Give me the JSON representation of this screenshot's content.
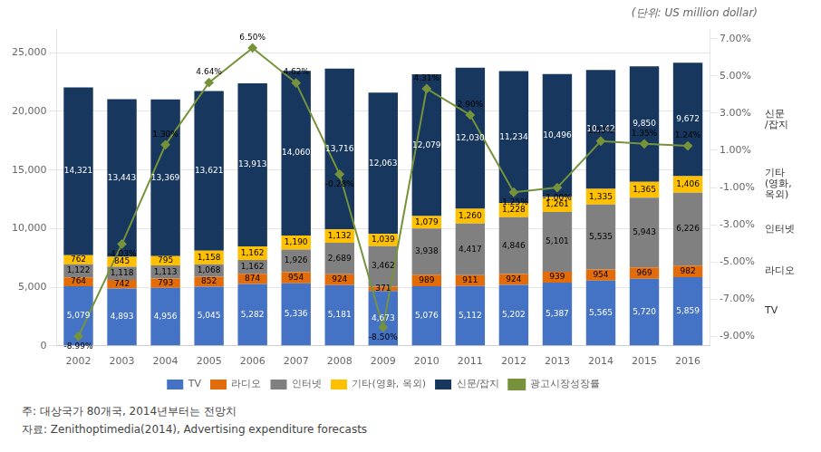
{
  "chart_data": {
    "type": "bar",
    "subtitle": "(단위: US million dollar)",
    "categories": [
      "2002",
      "2003",
      "2004",
      "2005",
      "2006",
      "2007",
      "2008",
      "2009",
      "2010",
      "2011",
      "2012",
      "2013",
      "2014",
      "2015",
      "2016"
    ],
    "stacked": true,
    "data_labels": true,
    "grid": true,
    "legend": "bottom",
    "series": [
      {
        "name": "TV",
        "color": "#4472C4",
        "values": [
          5079,
          4893,
          4956,
          5045,
          5282,
          5336,
          5181,
          4673,
          5076,
          5112,
          5202,
          5387,
          5565,
          5720,
          5859
        ],
        "value_labels": [
          "5,079",
          "4,893",
          "4,956",
          "5,045",
          "5,282",
          "5,336",
          "5,181",
          "4,673",
          "5,076",
          "5,112",
          "5,202",
          "5,387",
          "5,565",
          "5,720",
          "5,859"
        ]
      },
      {
        "name": "라디오",
        "color": "#E36C0A",
        "values": [
          764,
          742,
          793,
          852,
          874,
          954,
          924,
          371,
          989,
          911,
          924,
          939,
          954,
          969,
          982
        ]
      },
      {
        "name": "인터넷",
        "color": "#808080",
        "values": [
          1122,
          1118,
          1113,
          1068,
          1162,
          1926,
          2689,
          3462,
          3938,
          4417,
          4846,
          5101,
          5535,
          5943,
          6226
        ],
        "value_labels": [
          "1,122",
          "1,118",
          "1,113",
          "1,068",
          "1,162",
          "1,926",
          "2,689",
          "3,462",
          "3,938",
          "4,417",
          "4,846",
          "5,101",
          "5,535",
          "5,943",
          "6,226"
        ]
      },
      {
        "name": "기타(영화, 옥외)",
        "color": "#FFC000",
        "values": [
          762,
          845,
          795,
          1158,
          1162,
          1190,
          1132,
          1039,
          1079,
          1260,
          1228,
          1261,
          1335,
          1365,
          1406
        ],
        "value_labels": [
          "762",
          "845",
          "795",
          "1,158",
          "1,162",
          "1,190",
          "1,132",
          "1,039",
          "1,079",
          "1,260",
          "1,228",
          "1,261",
          "1,335",
          "1,365",
          "1,406"
        ]
      },
      {
        "name": "신문/잡지",
        "color": "#17375E",
        "values": [
          14321,
          13443,
          13369,
          13621,
          13913,
          14060,
          13716,
          12063,
          12079,
          12030,
          11234,
          10496,
          10142,
          9850,
          9672
        ],
        "value_labels": [
          "14,321",
          "13,443",
          "13,369",
          "13,621",
          "13,913",
          "14,060",
          "13,716",
          "12,063",
          "12,079",
          "12,030",
          "11,234",
          "10,496",
          "10,142",
          "9,850",
          "9,672"
        ]
      },
      {
        "name": "광고시장성장률",
        "type": "line",
        "axis": "y2",
        "color": "#76933C",
        "marker": "diamond",
        "values": [
          -8.99,
          -4.03,
          1.3,
          4.64,
          6.5,
          4.62,
          -0.28,
          -8.5,
          4.31,
          2.9,
          -1.25,
          -1.0,
          1.5,
          1.35,
          1.24
        ],
        "value_labels": [
          "-8.99%",
          "-4.03%",
          "1.30%",
          "4.64%",
          "6.50%",
          "4.62%",
          "-0.28%",
          "-8.50%",
          "4.31%",
          "2.90%",
          "-1.25%",
          "-1.00%",
          "1.50%",
          "1.35%",
          "1.24%"
        ]
      }
    ],
    "ylim": [
      0,
      27000
    ],
    "yticks": [
      0,
      {
        "value": 5000,
        "label": "5,000"
      },
      {
        "value": 10000,
        "label": "10,000"
      },
      {
        "value": 15000,
        "label": "15,000"
      },
      {
        "value": 20000,
        "label": "20,000"
      },
      {
        "value": 25000,
        "label": "25,000"
      }
    ],
    "y2lim": [
      -9.5,
      7.5
    ],
    "y2ticks": [
      {
        "value": -9.0,
        "label": "-9.00%"
      },
      {
        "value": -7.0,
        "label": "-7.00%"
      },
      {
        "value": -5.0,
        "label": "-5.00%"
      },
      {
        "value": -3.0,
        "label": "-3.00%"
      },
      {
        "value": -1.0,
        "label": "-1.00%"
      },
      {
        "value": 1.0,
        "label": "1.00%"
      },
      {
        "value": 3.0,
        "label": "3.00%"
      },
      {
        "value": 5.0,
        "label": "5.00%"
      },
      {
        "value": 7.0,
        "label": "7.00%"
      }
    ],
    "annotations": [
      {
        "text": "신문\n/잡지",
        "series": "신문/잡지"
      },
      {
        "text": "기타\n(영화,\n옥외)",
        "series": "기타(영화, 옥외)"
      },
      {
        "text": "인터넷",
        "series": "인터넷"
      },
      {
        "text": "라디오",
        "series": "라디오"
      },
      {
        "text": "TV",
        "series": "TV"
      }
    ],
    "notes": [
      "주: 대상국가 80개국, 2014년부터는 전망치",
      "자료: Zenithoptimedia(2014), Advertising expenditure forecasts"
    ]
  }
}
